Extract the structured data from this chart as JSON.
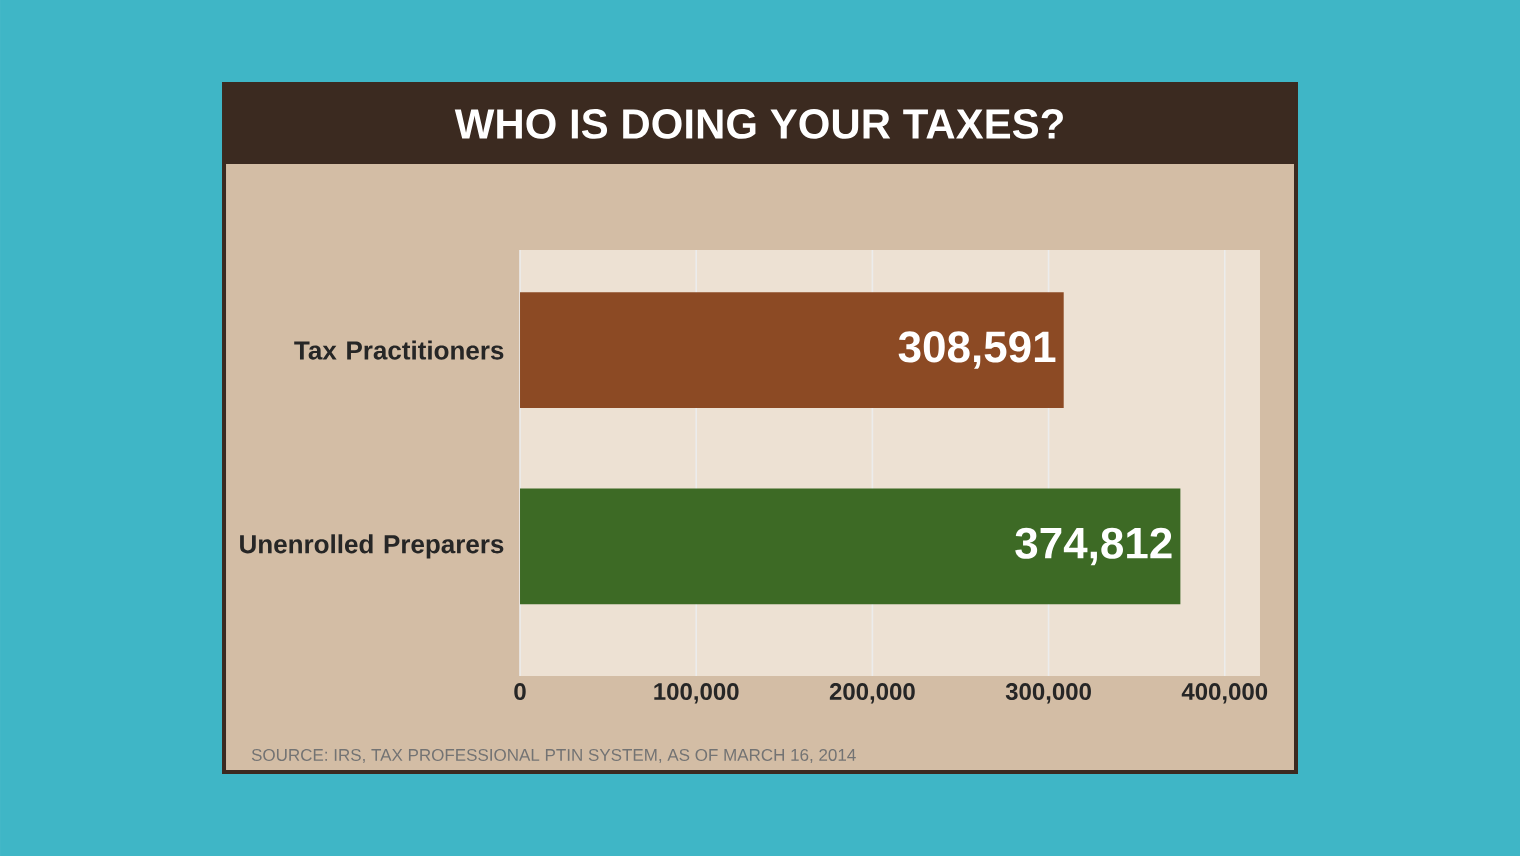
{
  "chart_data": {
    "type": "bar",
    "orientation": "horizontal",
    "title": "WHO IS DOING YOUR TAXES?",
    "categories": [
      "Tax Practitioners",
      "Unenrolled Preparers"
    ],
    "values": [
      308591,
      374812
    ],
    "value_labels": [
      "308,591",
      "374,812"
    ],
    "colors": [
      "#8c4a24",
      "#3d6a25"
    ],
    "xlim": [
      0,
      420000
    ],
    "xticks": [
      0,
      {
        "value": 100000,
        "label": "100,000"
      },
      {
        "value": 200000,
        "label": "200,000"
      },
      {
        "value": 300000,
        "label": "300,000"
      },
      {
        "value": 400000,
        "label": "400,000"
      }
    ],
    "grid": "x",
    "annotations": [
      "SOURCE: IRS, TAX PROFESSIONAL PTIN SYSTEM, AS OF MARCH 16, 2014"
    ]
  }
}
